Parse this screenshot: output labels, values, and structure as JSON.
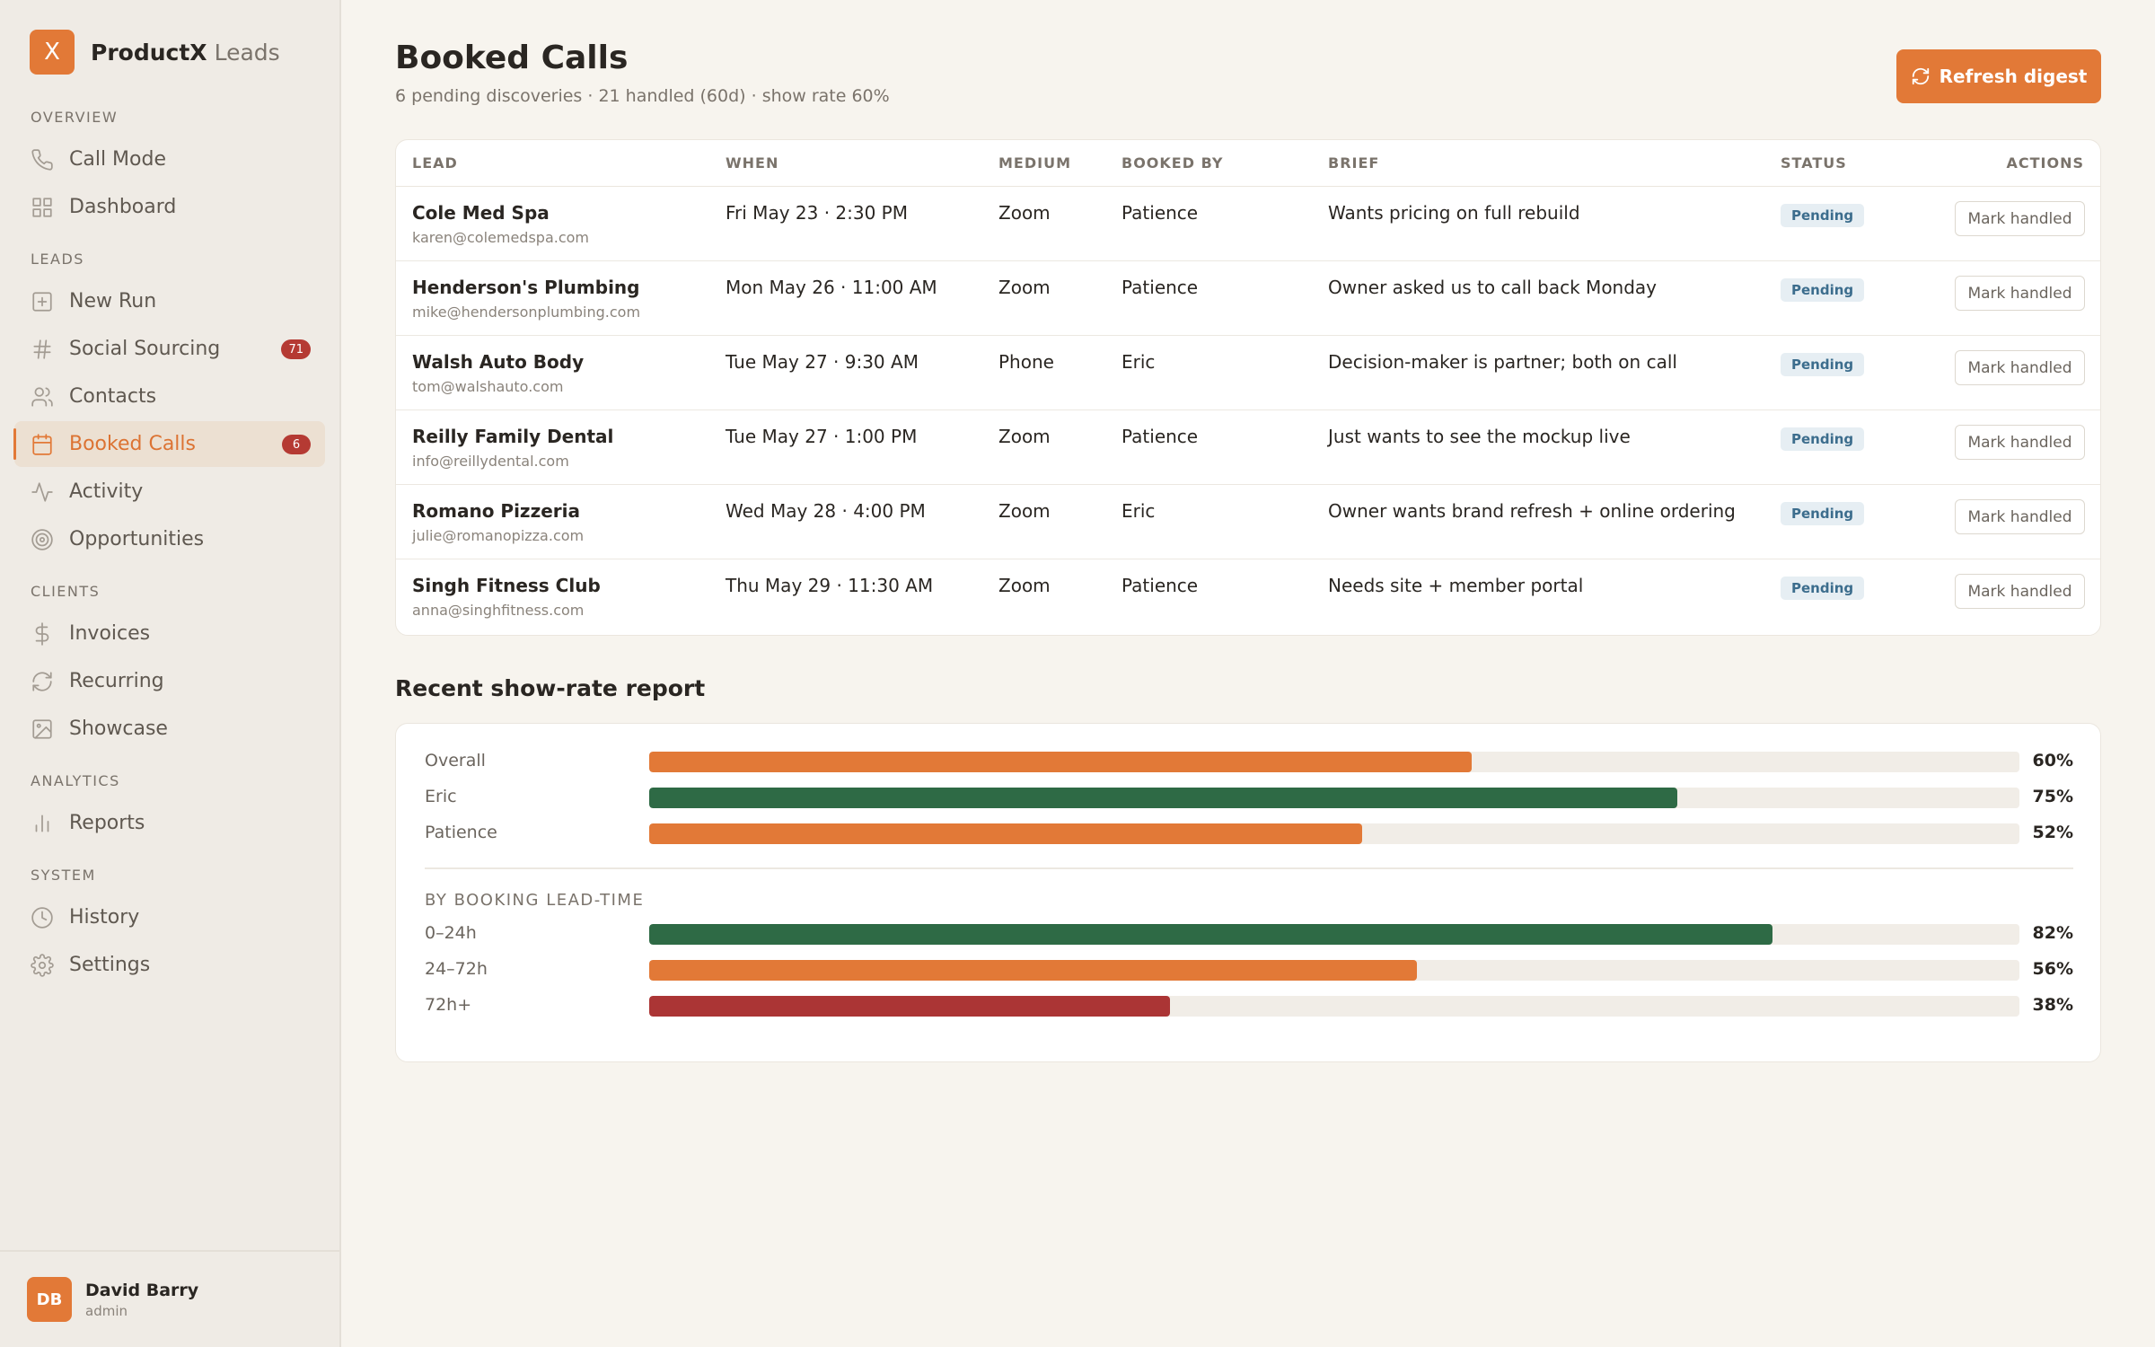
{
  "brand": {
    "logo_letter": "X",
    "name": "ProductX",
    "suffix": "Leads"
  },
  "sidebar": {
    "sections": [
      {
        "label": "OVERVIEW",
        "items": [
          {
            "label": "Call Mode",
            "icon": "phone-icon"
          },
          {
            "label": "Dashboard",
            "icon": "grid-icon"
          }
        ]
      },
      {
        "label": "LEADS",
        "items": [
          {
            "label": "New Run",
            "icon": "plus-square-icon"
          },
          {
            "label": "Social Sourcing",
            "icon": "hash-icon",
            "badge": "71"
          },
          {
            "label": "Contacts",
            "icon": "users-icon"
          },
          {
            "label": "Booked Calls",
            "icon": "calendar-icon",
            "badge": "6",
            "active": true
          },
          {
            "label": "Activity",
            "icon": "activity-icon"
          },
          {
            "label": "Opportunities",
            "icon": "target-icon"
          }
        ]
      },
      {
        "label": "CLIENTS",
        "items": [
          {
            "label": "Invoices",
            "icon": "dollar-icon"
          },
          {
            "label": "Recurring",
            "icon": "refresh-icon"
          },
          {
            "label": "Showcase",
            "icon": "image-icon"
          }
        ]
      },
      {
        "label": "ANALYTICS",
        "items": [
          {
            "label": "Reports",
            "icon": "bar-chart-icon"
          }
        ]
      },
      {
        "label": "SYSTEM",
        "items": [
          {
            "label": "History",
            "icon": "clock-icon"
          },
          {
            "label": "Settings",
            "icon": "gear-icon"
          }
        ]
      }
    ]
  },
  "user": {
    "initials": "DB",
    "name": "David Barry",
    "role": "admin"
  },
  "header": {
    "title": "Booked Calls",
    "subtitle": "6 pending discoveries · 21 handled (60d) · show rate 60%",
    "refresh_label": "Refresh digest"
  },
  "table": {
    "columns": [
      "LEAD",
      "WHEN",
      "MEDIUM",
      "BOOKED BY",
      "BRIEF",
      "STATUS",
      "ACTIONS"
    ],
    "action_label": "Mark handled",
    "rows": [
      {
        "name": "Cole Med Spa",
        "email": "karen@colemedspa.com",
        "when": "Fri May 23 · 2:30 PM",
        "medium": "Zoom",
        "booked_by": "Patience",
        "brief": "Wants pricing on full rebuild",
        "status": "Pending"
      },
      {
        "name": "Henderson's Plumbing",
        "email": "mike@hendersonplumbing.com",
        "when": "Mon May 26 · 11:00 AM",
        "medium": "Zoom",
        "booked_by": "Patience",
        "brief": "Owner asked us to call back Monday",
        "status": "Pending"
      },
      {
        "name": "Walsh Auto Body",
        "email": "tom@walshauto.com",
        "when": "Tue May 27 · 9:30 AM",
        "medium": "Phone",
        "booked_by": "Eric",
        "brief": "Decision-maker is partner; both on call",
        "status": "Pending"
      },
      {
        "name": "Reilly Family Dental",
        "email": "info@reillydental.com",
        "when": "Tue May 27 · 1:00 PM",
        "medium": "Zoom",
        "booked_by": "Patience",
        "brief": "Just wants to see the mockup live",
        "status": "Pending"
      },
      {
        "name": "Romano Pizzeria",
        "email": "julie@romanopizza.com",
        "when": "Wed May 28 · 4:00 PM",
        "medium": "Zoom",
        "booked_by": "Eric",
        "brief": "Owner wants brand refresh + online ordering",
        "status": "Pending"
      },
      {
        "name": "Singh Fitness Club",
        "email": "anna@singhfitness.com",
        "when": "Thu May 29 · 11:30 AM",
        "medium": "Zoom",
        "booked_by": "Patience",
        "brief": "Needs site + member portal",
        "status": "Pending"
      }
    ]
  },
  "report": {
    "title": "Recent show-rate report",
    "subsection_label": "BY BOOKING LEAD-TIME",
    "overall": [
      {
        "label": "Overall",
        "value": 60,
        "display": "60%",
        "color": "#e27937"
      },
      {
        "label": "Eric",
        "value": 75,
        "display": "75%",
        "color": "#2e6a45"
      },
      {
        "label": "Patience",
        "value": 52,
        "display": "52%",
        "color": "#e27937"
      }
    ],
    "lead_time": [
      {
        "label": "0–24h",
        "value": 82,
        "display": "82%",
        "color": "#2e6a45"
      },
      {
        "label": "24–72h",
        "value": 56,
        "display": "56%",
        "color": "#e27937"
      },
      {
        "label": "72h+",
        "value": 38,
        "display": "38%",
        "color": "#ab3535"
      }
    ]
  }
}
